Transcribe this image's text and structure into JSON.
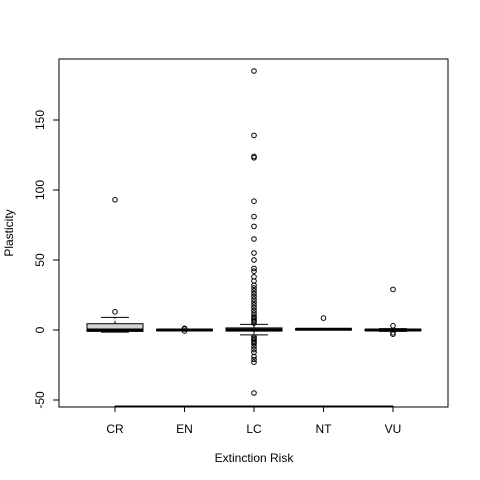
{
  "chart_data": {
    "type": "box",
    "xlabel": "Extinction Risk",
    "ylabel": "Plasticity",
    "ylim": [
      -55,
      190
    ],
    "yticks": [
      -50,
      0,
      50,
      100,
      150
    ],
    "ytick_labels": [
      "-50",
      "0",
      "50",
      "100",
      "150"
    ],
    "categories": [
      "CR",
      "EN",
      "LC",
      "NT",
      "VU"
    ],
    "boxes": [
      {
        "category": "CR",
        "whisker_low": -1.5,
        "q1": -1.0,
        "median": 0.0,
        "q3": 4.5,
        "whisker_high": 9.0,
        "outliers": [
          13,
          93
        ]
      },
      {
        "category": "EN",
        "whisker_low": -0.5,
        "q1": -0.3,
        "median": 0.0,
        "q3": 0.3,
        "whisker_high": 0.6,
        "outliers": [
          1.2,
          0.7,
          -0.7
        ]
      },
      {
        "category": "LC",
        "whisker_low": -3.5,
        "q1": -0.8,
        "median": 0.0,
        "q3": 1.5,
        "whisker_high": 4.0,
        "outliers": [
          185,
          139,
          124,
          123,
          92,
          81,
          74,
          65,
          55,
          50,
          44,
          42,
          38,
          35,
          32,
          30,
          28,
          26,
          24,
          22,
          20,
          18,
          16,
          14,
          12,
          10,
          9,
          8,
          7,
          6,
          5,
          -5,
          -6,
          -7,
          -8,
          -9,
          -10,
          -12,
          -14,
          -16,
          -19,
          -21,
          -23,
          -45
        ]
      },
      {
        "category": "NT",
        "whisker_low": 0.0,
        "q1": 0.2,
        "median": 0.5,
        "q3": 0.8,
        "whisker_high": 1.0,
        "outliers": [
          8.5
        ]
      },
      {
        "category": "VU",
        "whisker_low": -1.0,
        "q1": -0.5,
        "median": 0.0,
        "q3": 0.4,
        "whisker_high": 1.0,
        "outliers": [
          29,
          3,
          -2,
          -3
        ]
      }
    ],
    "box_fill": "#d3d3d3",
    "grid": false
  }
}
